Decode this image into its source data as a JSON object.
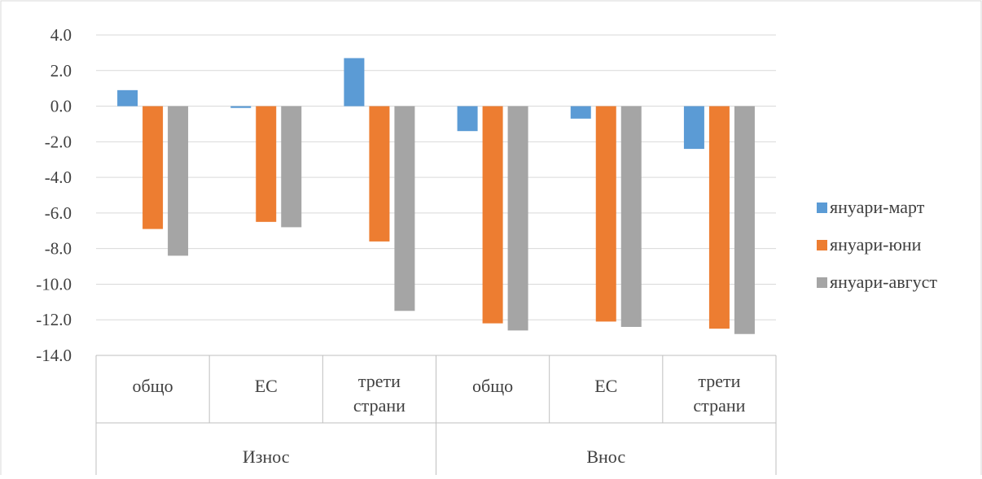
{
  "chart_data": {
    "type": "bar",
    "groups": [
      {
        "label": "Износ",
        "categories": [
          "общо",
          "ЕС",
          "трети\nстрани"
        ]
      },
      {
        "label": "Внос",
        "categories": [
          "общо",
          "ЕС",
          "трети\nстрани"
        ]
      }
    ],
    "categories": [
      "общо",
      "ЕС",
      "трети\nстрани",
      "общо",
      "ЕС",
      "трети\nстрани"
    ],
    "series": [
      {
        "name": "януари-март",
        "color": "#5b9bd5",
        "values": [
          0.9,
          -0.1,
          2.7,
          -1.4,
          -0.7,
          -2.4
        ]
      },
      {
        "name": "януари-юни",
        "color": "#ed7d31",
        "values": [
          -6.9,
          -6.5,
          -7.6,
          -12.2,
          -12.1,
          -12.5
        ]
      },
      {
        "name": "януари-август",
        "color": "#a5a5a5",
        "values": [
          -8.4,
          -6.8,
          -11.5,
          -12.6,
          -12.4,
          -12.8
        ]
      }
    ],
    "ylim": [
      -14,
      4
    ],
    "yticks": [
      "4.0",
      "2.0",
      "0.0",
      "-2.0",
      "-4.0",
      "-6.0",
      "-8.0",
      "-10.0",
      "-12.0",
      "-14.0"
    ],
    "ytick_values": [
      4,
      2,
      0,
      -2,
      -4,
      -6,
      -8,
      -10,
      -12,
      -14
    ],
    "grid": true,
    "legend_position": "right"
  }
}
